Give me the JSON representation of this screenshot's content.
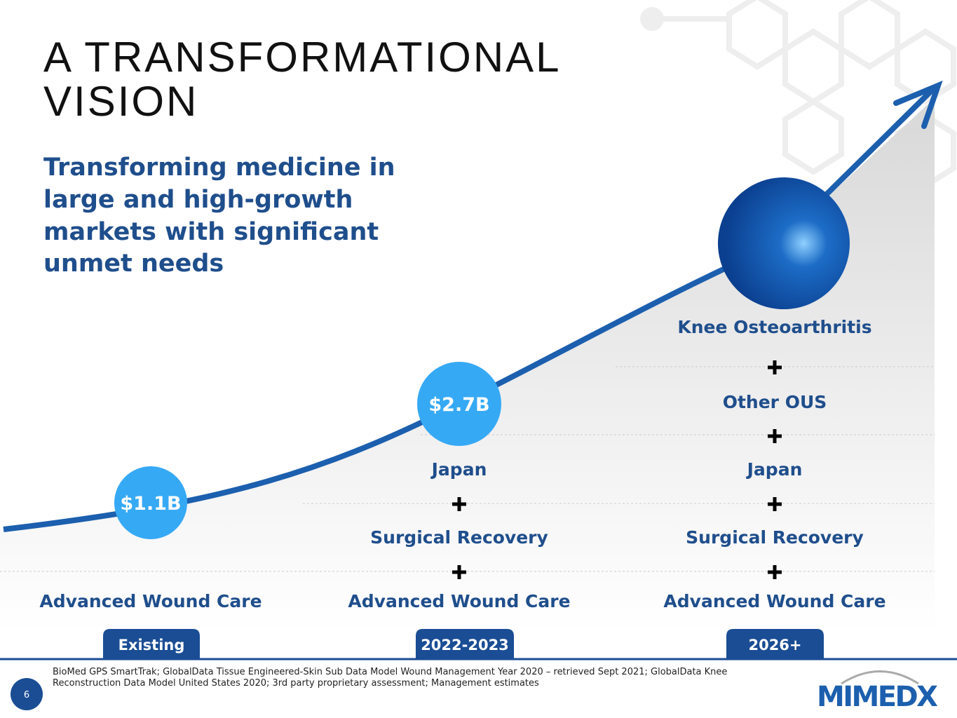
{
  "header": {
    "title_lines": [
      "A TRANSFORMATIONAL",
      "VISION"
    ],
    "subtitle_lines": [
      "Transforming medicine in",
      "large and high-growth",
      "markets with significant",
      "unmet needs"
    ]
  },
  "columns": [
    {
      "period": "Existing",
      "market": "$1.1B",
      "items": [
        "Advanced Wound Care"
      ]
    },
    {
      "period": "2022-2023",
      "market": "$2.7B",
      "items": [
        "Advanced Wound Care",
        "Surgical Recovery",
        "Japan"
      ]
    },
    {
      "period": "2026+",
      "items": [
        "Advanced Wound Care",
        "Surgical Recovery",
        "Japan",
        "Other OUS",
        "Knee Osteoarthritis"
      ]
    }
  ],
  "footer": {
    "source_lines": [
      "BioMed GPS SmartTrak; GlobalData Tissue Engineered-Skin Sub Data Model Wound Management Year 2020 – retrieved Sept 2021; GlobalData Knee",
      "Reconstruction Data Model United States 2020; 3rd party proprietary assessment; Management estimates"
    ],
    "page_number": "6",
    "logo": "MIMEDX"
  }
}
